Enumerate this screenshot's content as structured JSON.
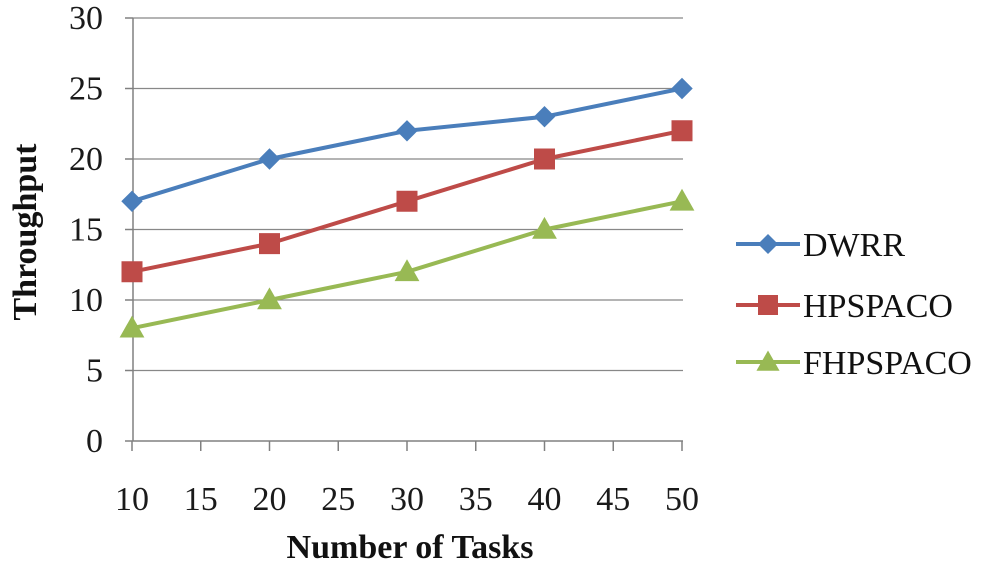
{
  "chart_data": {
    "type": "line",
    "title": "",
    "xlabel": "Number of Tasks",
    "ylabel": "Throughput",
    "x": [
      10,
      20,
      30,
      40,
      50
    ],
    "xlim": [
      10,
      50
    ],
    "ylim": [
      0,
      30
    ],
    "xticks": [
      10,
      15,
      20,
      25,
      30,
      35,
      40,
      45,
      50
    ],
    "yticks": [
      0,
      5,
      10,
      15,
      20,
      25,
      30
    ],
    "grid": "horizontal",
    "legend_position": "right",
    "series": [
      {
        "name": "DWRR",
        "values": [
          17,
          20,
          22,
          23,
          25
        ],
        "color": "#4a7ebb",
        "marker": "diamond"
      },
      {
        "name": "HPSPACO",
        "values": [
          12,
          14,
          17,
          20,
          22
        ],
        "color": "#be4b48",
        "marker": "square"
      },
      {
        "name": "FHPSPACO",
        "values": [
          8,
          10,
          12,
          15,
          17
        ],
        "color": "#98b954",
        "marker": "triangle"
      }
    ]
  }
}
